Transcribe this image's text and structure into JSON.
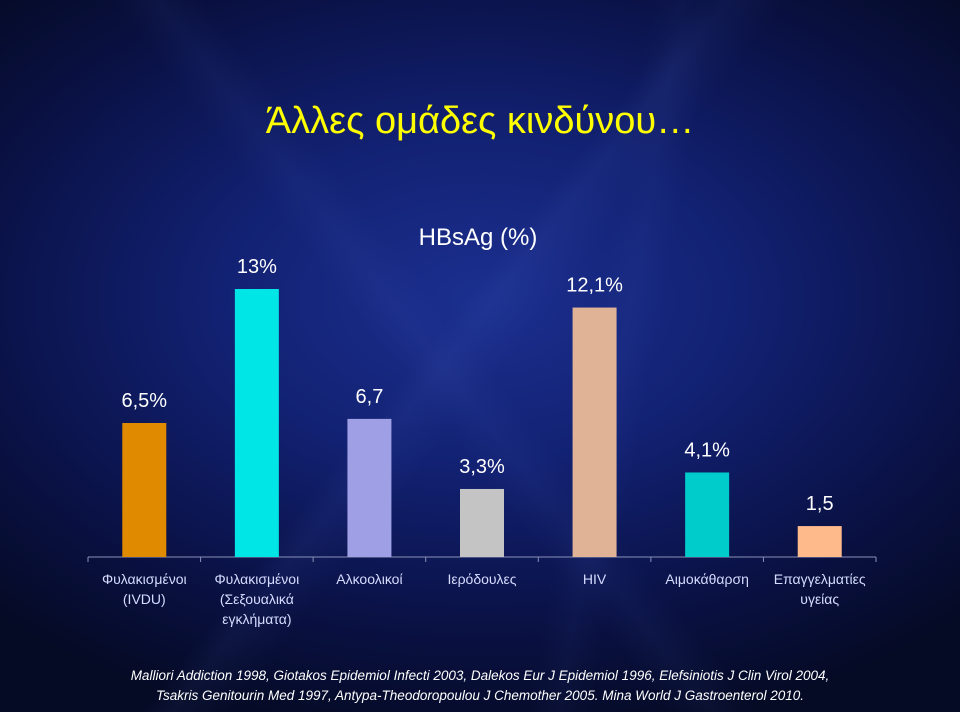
{
  "slide": {
    "title": "Άλλες ομάδες κινδύνου…",
    "references": [
      "Malliori Addiction 1998, Giotakos Epidemiol Infecti 2003, Dalekos Eur J Epidemiol 1996, Elefsiniotis J Clin Virol 2004,",
      "Tsakris Genitourin Med 1997, Antypa-Theodoropoulou J Chemother 2005. Mina World J Gastroenterol 2010."
    ]
  },
  "colors": {
    "title": "#ffff00",
    "text": "#ffffff",
    "axis_labels": "#d6dcff"
  },
  "chart_data": {
    "type": "bar",
    "title": "HBsAg (%)",
    "categories": [
      [
        "Φυλακισμένοι",
        "(IVDU)"
      ],
      [
        "Φυλακισμένοι",
        "(Σεξουαλικά",
        "εγκλήματα)"
      ],
      [
        "Αλκοολικοί"
      ],
      [
        "Ιερόδουλες"
      ],
      [
        "HIV"
      ],
      [
        "Αιμοκάθαρση"
      ],
      [
        "Επαγγελματίες",
        "υγείας"
      ]
    ],
    "values": [
      6.5,
      13,
      6.7,
      3.3,
      12.1,
      4.1,
      1.5
    ],
    "data_labels": [
      "6,5%",
      "13%",
      "6,7",
      "3,3%",
      "12,1%",
      "4,1%",
      "1,5"
    ],
    "bar_colors": [
      "#e08a00",
      "#00e5e5",
      "#9f9fe6",
      "#c4c4c4",
      "#e0b296",
      "#00cccc",
      "#ffba8c"
    ],
    "ylim": [
      0,
      13
    ],
    "grid": false,
    "legend": "none"
  }
}
